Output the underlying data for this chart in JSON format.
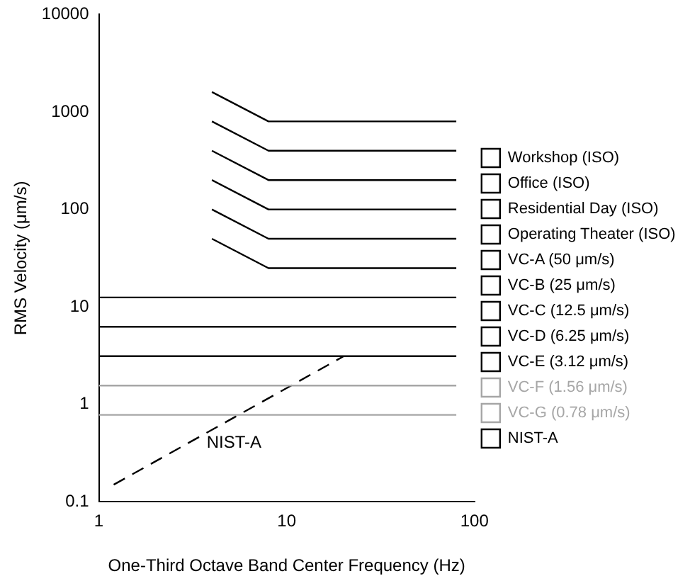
{
  "chart_data": {
    "type": "line",
    "xlabel": "One-Third Octave Band Center Frequency (Hz)",
    "ylabel": "RMS Velocity (μm/s)",
    "log": "xy",
    "xlim": [
      1,
      100
    ],
    "xticks": [
      1,
      10,
      100
    ],
    "ylim": [
      0.1,
      10000
    ],
    "yticks": [
      0.1,
      1,
      10,
      100,
      1000,
      10000
    ],
    "grid": false,
    "legend": "right",
    "marker": "none",
    "line_style": "solid",
    "series": [
      {
        "name": "Workshop (ISO)",
        "color": "#000000",
        "x": [
          4,
          8,
          80
        ],
        "values": [
          1600,
          800,
          800
        ]
      },
      {
        "name": "Office (ISO)",
        "color": "#000000",
        "x": [
          4,
          8,
          80
        ],
        "values": [
          800,
          400,
          400
        ]
      },
      {
        "name": "Residential Day (ISO)",
        "color": "#000000",
        "x": [
          4,
          8,
          80
        ],
        "values": [
          400,
          200,
          200
        ]
      },
      {
        "name": "Operating Theater (ISO)",
        "color": "#000000",
        "x": [
          4,
          8,
          80
        ],
        "values": [
          200,
          100,
          100
        ]
      },
      {
        "name": "VC-A (50 μm/s)",
        "color": "#000000",
        "x": [
          4,
          8,
          80
        ],
        "values": [
          100,
          50,
          50
        ]
      },
      {
        "name": "VC-B (25 μm/s)",
        "color": "#000000",
        "x": [
          4,
          8,
          80
        ],
        "values": [
          50,
          25,
          25
        ]
      },
      {
        "name": "VC-C (12.5 μm/s)",
        "color": "#000000",
        "x": [
          1,
          80
        ],
        "values": [
          12.5,
          12.5
        ]
      },
      {
        "name": "VC-D (6.25 μm/s)",
        "color": "#000000",
        "x": [
          1,
          80
        ],
        "values": [
          6.25,
          6.25
        ]
      },
      {
        "name": "VC-E (3.12 μm/s)",
        "color": "#000000",
        "x": [
          1,
          80
        ],
        "values": [
          3.12,
          3.12
        ]
      },
      {
        "name": "VC-F (1.56 μm/s)",
        "color": "#a6a6a6",
        "x": [
          1,
          80
        ],
        "values": [
          1.56,
          1.56
        ]
      },
      {
        "name": "VC-G (0.78 μm/s)",
        "color": "#a6a6a6",
        "x": [
          1,
          80
        ],
        "values": [
          0.78,
          0.78
        ]
      },
      {
        "name": "NIST-A",
        "color": "#000000",
        "x": [
          1.2,
          20
        ],
        "values": [
          0.15,
          3.1
        ],
        "line_style": "dashed"
      }
    ],
    "annotations": [
      "NIST-A"
    ]
  }
}
